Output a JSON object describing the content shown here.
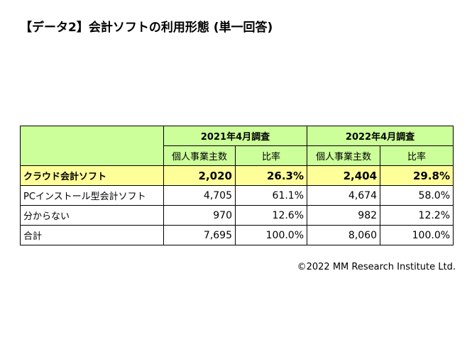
{
  "title": "【データ2】会計ソフトの利用形態 (単一回答)",
  "table": {
    "groups": [
      "2021年4月調査",
      "2022年4月調査"
    ],
    "subheaders": [
      "個人事業主数",
      "比率",
      "個人事業主数",
      "比率"
    ],
    "rows": [
      {
        "label": "クラウド会計ソフト",
        "values": [
          "2,020",
          "26.3%",
          "2,404",
          "29.8%"
        ]
      },
      {
        "label": "PCインストール型会計ソフト",
        "values": [
          "4,705",
          "61.1%",
          "4,674",
          "58.0%"
        ]
      },
      {
        "label": "分からない",
        "values": [
          "970",
          "12.6%",
          "982",
          "12.2%"
        ]
      },
      {
        "label": "合計",
        "values": [
          "7,695",
          "100.0%",
          "8,060",
          "100.0%"
        ]
      }
    ]
  },
  "colors": {
    "header_bg": "#ccff99",
    "highlight_bg": "#ffff99"
  },
  "copyright": "©2022 MM Research Institute Ltd."
}
